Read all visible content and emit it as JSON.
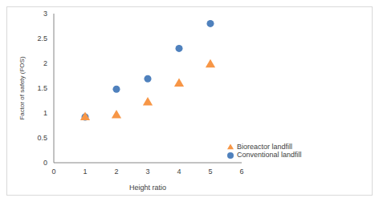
{
  "chart_data": {
    "type": "scatter",
    "x_label": "Height ratio",
    "y_label": "Factor of safety (FOS)",
    "xlim": [
      0,
      6
    ],
    "xticks": [
      0,
      1,
      2,
      3,
      4,
      5,
      6
    ],
    "ylim": [
      0,
      3
    ],
    "yticks": [
      0,
      0.5,
      1,
      1.5,
      2,
      2.5,
      3
    ],
    "grid": false,
    "legend": "lower right",
    "series": [
      {
        "name": "Conventional landfill",
        "color": "#4f81bd",
        "marker": "circle",
        "x": [
          1,
          2,
          3,
          4,
          5
        ],
        "values": [
          0.92,
          1.48,
          1.69,
          2.3,
          2.8
        ]
      },
      {
        "name": "Bioreactor landfill",
        "color": "#f79646",
        "marker": "triangle",
        "x": [
          1,
          2,
          3,
          4,
          5
        ],
        "values": [
          0.91,
          0.95,
          1.21,
          1.59,
          1.97
        ]
      }
    ]
  }
}
